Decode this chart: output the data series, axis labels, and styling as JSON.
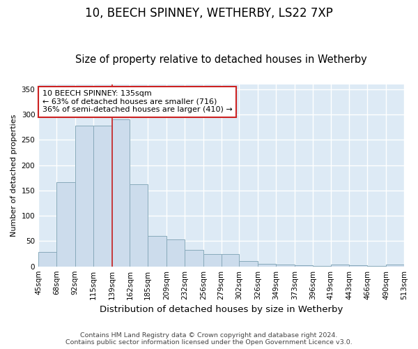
{
  "title1": "10, BEECH SPINNEY, WETHERBY, LS22 7XP",
  "title2": "Size of property relative to detached houses in Wetherby",
  "xlabel": "Distribution of detached houses by size in Wetherby",
  "ylabel": "Number of detached properties",
  "annotation_line1": "10 BEECH SPINNEY: 135sqm",
  "annotation_line2": "← 63% of detached houses are smaller (716)",
  "annotation_line3": "36% of semi-detached houses are larger (410) →",
  "footer1": "Contains HM Land Registry data © Crown copyright and database right 2024.",
  "footer2": "Contains public sector information licensed under the Open Government Licence v3.0.",
  "bar_color": "#ccdcec",
  "bar_edge_color": "#88aabb",
  "vline_color": "#cc2222",
  "vline_x": 139,
  "bin_edges": [
    45,
    68,
    92,
    115,
    139,
    162,
    185,
    209,
    232,
    256,
    279,
    302,
    326,
    349,
    373,
    396,
    419,
    443,
    466,
    490,
    513
  ],
  "bar_heights": [
    28,
    167,
    278,
    278,
    291,
    162,
    60,
    53,
    33,
    25,
    25,
    10,
    5,
    4,
    2,
    1,
    4,
    2,
    1,
    4
  ],
  "ylim": [
    0,
    360
  ],
  "yticks": [
    0,
    50,
    100,
    150,
    200,
    250,
    300,
    350
  ],
  "background_color": "#ffffff",
  "plot_bg_color": "#ddeaf5",
  "grid_color": "#ffffff",
  "title1_fontsize": 12,
  "title2_fontsize": 10.5,
  "xlabel_fontsize": 9.5,
  "ylabel_fontsize": 8,
  "tick_fontsize": 7.5,
  "annotation_fontsize": 8,
  "footer_fontsize": 6.8
}
